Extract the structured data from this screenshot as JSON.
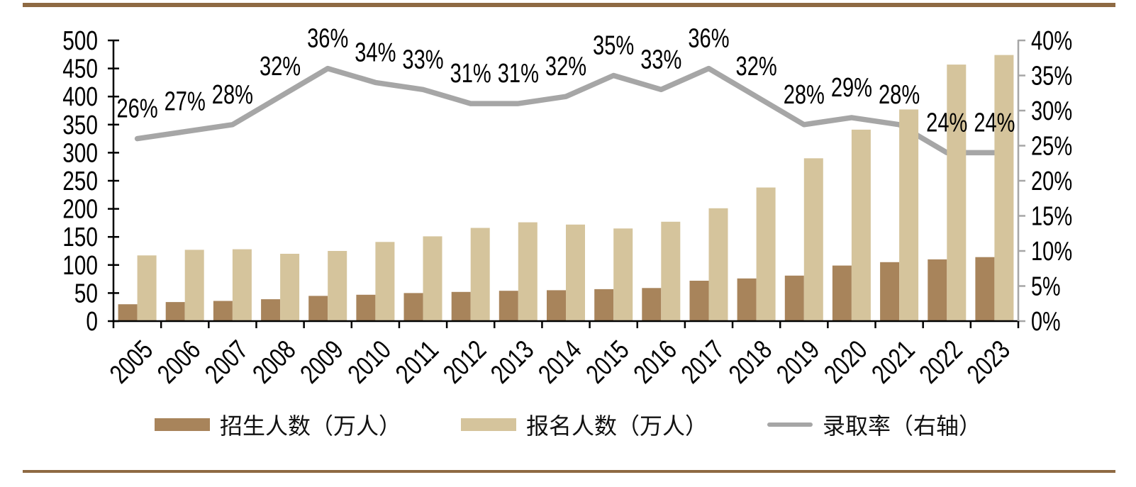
{
  "page": {
    "background": "#ffffff",
    "border_color": "#8E6A43"
  },
  "colors": {
    "axis_left_and_bottom": "#000000",
    "axis_right": "#A6A6A6",
    "bar_dark": "#A8845B",
    "bar_light": "#D5C49C",
    "line_gray": "#A6A6A6",
    "text": "#000000"
  },
  "chart_data": {
    "type": "bar+line combo",
    "title": "",
    "categories": [
      "2005",
      "2006",
      "2007",
      "2008",
      "2009",
      "2010",
      "2011",
      "2012",
      "2013",
      "2014",
      "2015",
      "2016",
      "2017",
      "2018",
      "2019",
      "2020",
      "2021",
      "2022",
      "2023"
    ],
    "series": [
      {
        "name": "招生人数（万人）",
        "type": "bar",
        "axis": "left",
        "color": "#A8845B",
        "values": [
          30,
          34,
          36,
          39,
          45,
          47,
          50,
          52,
          54,
          55,
          57,
          59,
          72,
          76,
          81,
          99,
          105,
          110,
          114
        ]
      },
      {
        "name": "报名人数（万人）",
        "type": "bar",
        "axis": "left",
        "color": "#D5C49C",
        "values": [
          117,
          127,
          128,
          120,
          125,
          141,
          151,
          166,
          176,
          172,
          165,
          177,
          201,
          238,
          290,
          341,
          377,
          457,
          474
        ]
      },
      {
        "name": "录取率（右轴）",
        "type": "line",
        "axis": "right",
        "color": "#A6A6A6",
        "values": [
          26,
          27,
          28,
          32,
          36,
          34,
          33,
          31,
          31,
          32,
          35,
          33,
          36,
          32,
          28,
          29,
          28,
          24,
          24
        ],
        "point_labels": [
          "26%",
          "27%",
          "28%",
          "32%",
          "36%",
          "34%",
          "33%",
          "31%",
          "31%",
          "32%",
          "35%",
          "33%",
          "36%",
          "32%",
          "28%",
          "29%",
          "28%",
          "24%",
          "24%"
        ]
      }
    ],
    "left_axis": {
      "min": 0,
      "max": 500,
      "step": 50,
      "tick_labels": [
        "0",
        "50",
        "100",
        "150",
        "200",
        "250",
        "300",
        "350",
        "400",
        "450",
        "500"
      ]
    },
    "right_axis": {
      "min": 0,
      "max": 40,
      "step": 5,
      "tick_labels": [
        "0%",
        "5%",
        "10%",
        "15%",
        "20%",
        "25%",
        "30%",
        "35%",
        "40%"
      ]
    },
    "grid": false,
    "legend_position": "bottom"
  }
}
